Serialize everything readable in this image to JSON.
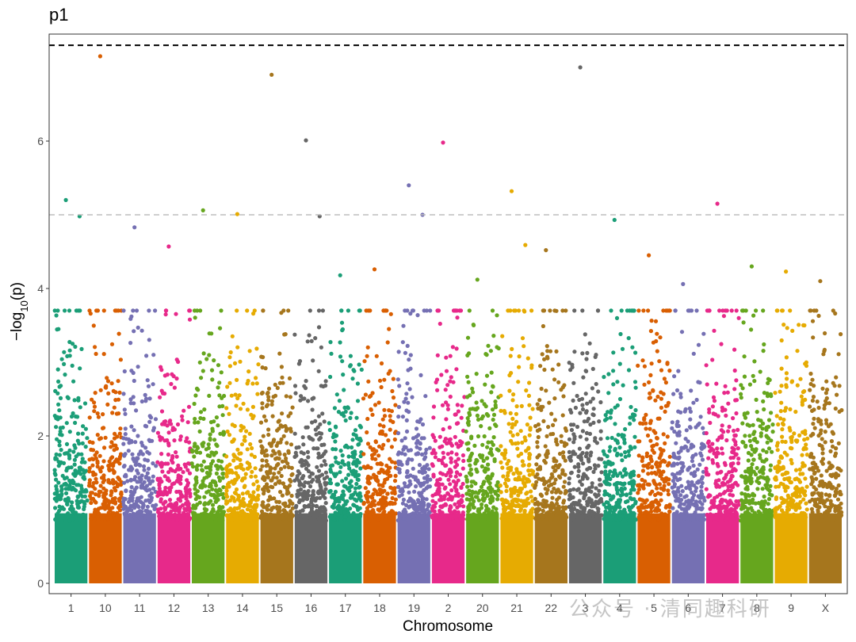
{
  "plot_tag": "p1",
  "watermark": "公众号 · 清同趣科研",
  "chart_data": {
    "type": "scatter",
    "subtype": "manhattan",
    "title": "",
    "xlabel": "Chromosome",
    "ylabel": "−log10(p)",
    "ylim": [
      0,
      7.35
    ],
    "yticks": [
      0,
      2,
      4,
      6
    ],
    "categories": [
      "1",
      "10",
      "11",
      "12",
      "13",
      "14",
      "15",
      "16",
      "17",
      "18",
      "19",
      "2",
      "20",
      "21",
      "22",
      "3",
      "4",
      "5",
      "6",
      "7",
      "8",
      "9",
      "X"
    ],
    "colors": [
      "#1b9e77",
      "#d95f02",
      "#7570b3",
      "#e7298a",
      "#66a61e",
      "#e6ab02",
      "#a6761d",
      "#666666"
    ],
    "thresholds": [
      {
        "value": 7.3,
        "style": "dashed",
        "color": "#000000"
      },
      {
        "value": 5.0,
        "style": "dashed",
        "color": "#bebebe"
      }
    ],
    "grid": false,
    "legend": "none",
    "top_hits": [
      {
        "chromosome": "1",
        "neg_log10_p": 5.2
      },
      {
        "chromosome": "1",
        "neg_log10_p": 4.98
      },
      {
        "chromosome": "10",
        "neg_log10_p": 7.15
      },
      {
        "chromosome": "11",
        "neg_log10_p": 4.83
      },
      {
        "chromosome": "12",
        "neg_log10_p": 4.57
      },
      {
        "chromosome": "13",
        "neg_log10_p": 5.06
      },
      {
        "chromosome": "14",
        "neg_log10_p": 5.01
      },
      {
        "chromosome": "15",
        "neg_log10_p": 6.9
      },
      {
        "chromosome": "16",
        "neg_log10_p": 6.01
      },
      {
        "chromosome": "16",
        "neg_log10_p": 4.98
      },
      {
        "chromosome": "17",
        "neg_log10_p": 4.18
      },
      {
        "chromosome": "18",
        "neg_log10_p": 4.26
      },
      {
        "chromosome": "19",
        "neg_log10_p": 5.4
      },
      {
        "chromosome": "19",
        "neg_log10_p": 5.0
      },
      {
        "chromosome": "2",
        "neg_log10_p": 5.98
      },
      {
        "chromosome": "20",
        "neg_log10_p": 4.12
      },
      {
        "chromosome": "21",
        "neg_log10_p": 5.32
      },
      {
        "chromosome": "21",
        "neg_log10_p": 4.59
      },
      {
        "chromosome": "22",
        "neg_log10_p": 4.52
      },
      {
        "chromosome": "3",
        "neg_log10_p": 7.0
      },
      {
        "chromosome": "4",
        "neg_log10_p": 4.93
      },
      {
        "chromosome": "5",
        "neg_log10_p": 4.45
      },
      {
        "chromosome": "6",
        "neg_log10_p": 4.06
      },
      {
        "chromosome": "7",
        "neg_log10_p": 5.15
      },
      {
        "chromosome": "8",
        "neg_log10_p": 4.3
      },
      {
        "chromosome": "9",
        "neg_log10_p": 4.23
      },
      {
        "chromosome": "X",
        "neg_log10_p": 4.1
      }
    ]
  }
}
